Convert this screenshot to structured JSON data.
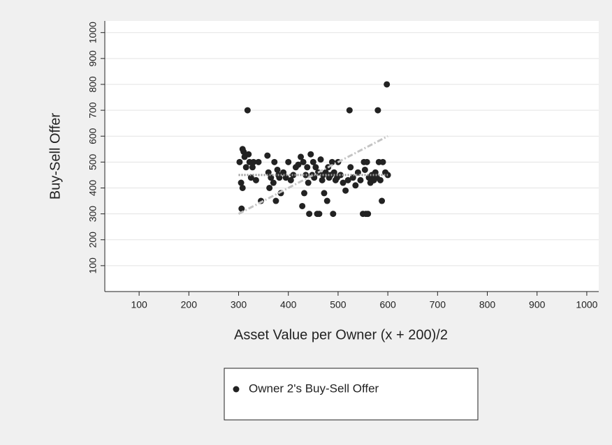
{
  "chart_data": {
    "type": "scatter",
    "xlabel": "Asset Value per Owner (x + 200)/2",
    "ylabel": "Buy-Sell Offer",
    "xlim": [
      31,
      1024
    ],
    "ylim": [
      0,
      1045
    ],
    "xticks": [
      100,
      200,
      300,
      400,
      500,
      600,
      700,
      800,
      900,
      1000
    ],
    "yticks": [
      100,
      200,
      300,
      400,
      500,
      600,
      700,
      800,
      900,
      1000
    ],
    "grid": true,
    "legend": "bottom",
    "series": [
      {
        "name": "Owner 2's Buy-Sell Offer",
        "color": "#222222",
        "x": [
          302,
          305,
          308,
          310,
          312,
          306,
          308,
          315,
          318,
          320,
          322,
          325,
          328,
          330,
          335,
          340,
          345,
          358,
          360,
          362,
          365,
          370,
          372,
          375,
          378,
          380,
          382,
          385,
          390,
          395,
          400,
          405,
          410,
          415,
          420,
          425,
          428,
          430,
          432,
          435,
          438,
          440,
          442,
          445,
          448,
          450,
          452,
          455,
          458,
          460,
          462,
          465,
          468,
          470,
          472,
          475,
          478,
          480,
          482,
          485,
          488,
          490,
          492,
          495,
          498,
          500,
          505,
          510,
          515,
          520,
          523,
          525,
          530,
          535,
          540,
          545,
          550,
          552,
          554,
          556,
          558,
          560,
          562,
          565,
          568,
          572,
          575,
          578,
          580,
          582,
          585,
          588,
          590,
          595,
          598,
          600
        ],
        "values": [
          500,
          420,
          550,
          540,
          520,
          320,
          400,
          480,
          700,
          530,
          500,
          440,
          480,
          500,
          430,
          500,
          350,
          525,
          460,
          400,
          440,
          420,
          500,
          350,
          470,
          450,
          440,
          380,
          460,
          440,
          500,
          430,
          450,
          480,
          490,
          520,
          330,
          500,
          380,
          450,
          480,
          420,
          300,
          530,
          450,
          500,
          440,
          480,
          300,
          460,
          300,
          510,
          430,
          450,
          380,
          460,
          350,
          480,
          440,
          450,
          500,
          300,
          460,
          430,
          440,
          500,
          450,
          420,
          390,
          430,
          700,
          480,
          440,
          410,
          460,
          430,
          300,
          500,
          470,
          300,
          500,
          300,
          440,
          420,
          450,
          430,
          460,
          440,
          700,
          500,
          430,
          350,
          500,
          460,
          800,
          450
        ]
      }
    ],
    "lines": [
      {
        "x": [
          300,
          600
        ],
        "values": [
          300,
          600
        ],
        "color": "#c4c4c4",
        "style": "dashed"
      },
      {
        "x": [
          300,
          600
        ],
        "values": [
          450,
          450
        ],
        "color": "#9a9a9a",
        "style": "dotted"
      }
    ]
  }
}
